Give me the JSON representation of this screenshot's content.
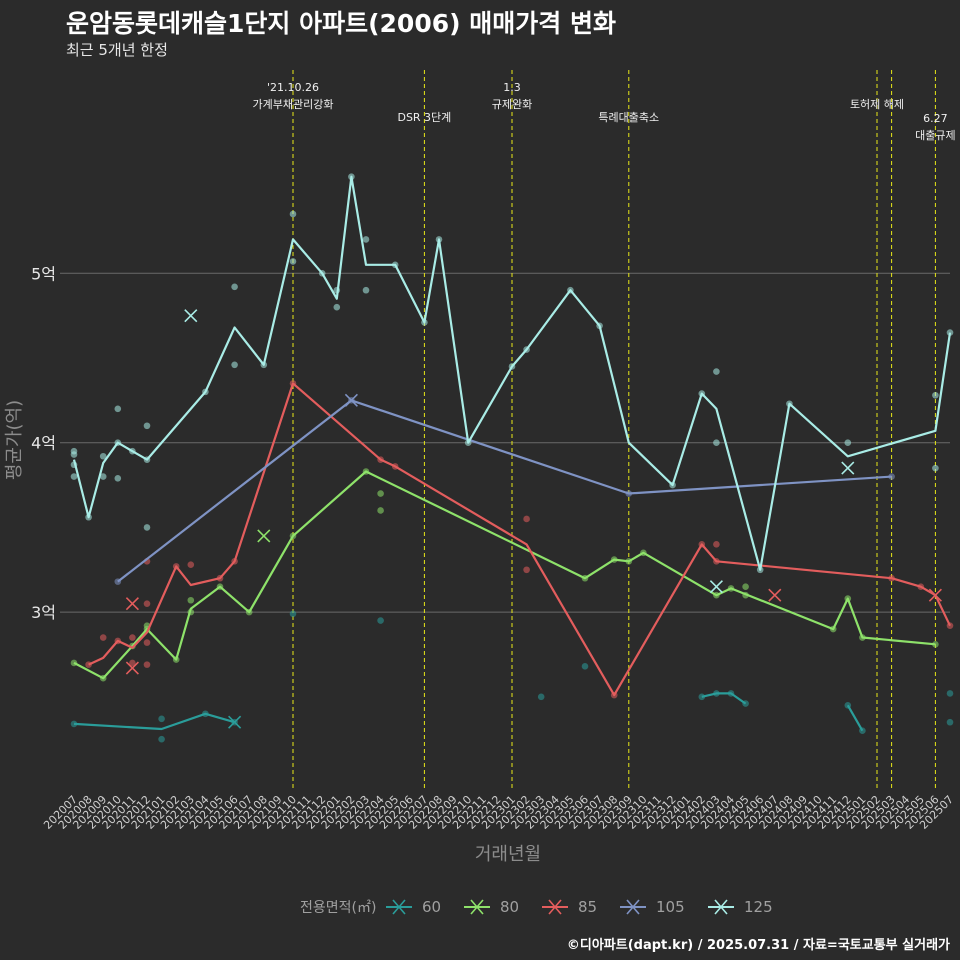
{
  "title": "운암동롯데캐슬1단지 아파트(2006) 매매가격 변화",
  "subtitle": "최근 5개년 한정",
  "caption": "©디아파트(dapt.kr) / 2025.07.31 / 자료=국토교통부 실거래가",
  "colors": {
    "60": "#2a9d9a",
    "80": "#8ee26a",
    "85": "#e35d5d",
    "105": "#7f93c4",
    "125": "#a9ece6",
    "event": "#e8e818"
  },
  "chart_data": {
    "type": "line",
    "xlabel": "거래년월",
    "ylabel": "평균가(억)",
    "x": [
      "202007",
      "202008",
      "202009",
      "202010",
      "202011",
      "202012",
      "202101",
      "202102",
      "202103",
      "202104",
      "202105",
      "202106",
      "202107",
      "202108",
      "202109",
      "202110",
      "202111",
      "202112",
      "202201",
      "202202",
      "202203",
      "202204",
      "202205",
      "202206",
      "202207",
      "202208",
      "202209",
      "202210",
      "202211",
      "202212",
      "202301",
      "202302",
      "202303",
      "202304",
      "202305",
      "202306",
      "202307",
      "202308",
      "202309",
      "202310",
      "202311",
      "202312",
      "202401",
      "202402",
      "202403",
      "202404",
      "202405",
      "202406",
      "202407",
      "202408",
      "202409",
      "202410",
      "202411",
      "202412",
      "202501",
      "202502",
      "202503",
      "202504",
      "202505",
      "202506",
      "202507"
    ],
    "y_ticks": [
      {
        "value": 3,
        "label": "3억"
      },
      {
        "value": 4,
        "label": "4억"
      },
      {
        "value": 5,
        "label": "5억"
      }
    ],
    "ylim": [
      1.95,
      6.2
    ],
    "legend_title": "전용면적(㎡)",
    "legend_position": "bottom",
    "events": [
      {
        "x": "202110",
        "label": "'21.10.26\n가계부채관리강화",
        "row": 1
      },
      {
        "x": "202207",
        "label": "DSR 3단계",
        "row": 2
      },
      {
        "x": "202301",
        "label": "1.3\n규제완화",
        "row": 1
      },
      {
        "x": "202309",
        "label": "특례대출축소",
        "row": 2
      },
      {
        "x": "202502",
        "label": "토허제 해제",
        "row": 1.5
      },
      {
        "x": "202503",
        "label": "",
        "row": 0
      },
      {
        "x": "202506",
        "label": "6.27\n대출규제",
        "row": 2.2
      }
    ],
    "series": [
      {
        "name": "60",
        "color": "#2a9d9a",
        "line": [
          [
            "202007",
            2.34
          ],
          [
            "202013",
            2.31
          ],
          [
            "202104",
            2.4
          ],
          [
            "202106",
            2.35
          ]
        ],
        "points": [
          [
            "202007",
            2.34
          ],
          [
            "202101",
            2.37
          ],
          [
            "202101",
            2.25
          ],
          [
            "202104",
            2.4
          ],
          [
            "202106",
            2.35
          ],
          [
            "202110",
            2.99
          ],
          [
            "202204",
            2.95
          ],
          [
            "202303",
            2.5
          ],
          [
            "202306",
            2.68
          ],
          [
            "202402",
            2.5
          ],
          [
            "202403",
            2.52
          ],
          [
            "202404",
            2.52
          ],
          [
            "202405",
            2.46
          ],
          [
            "202412",
            2.45
          ],
          [
            "202501",
            2.3
          ],
          [
            "202507",
            2.52
          ],
          [
            "202507",
            2.35
          ]
        ],
        "crosses": [
          [
            "202106",
            2.35
          ]
        ],
        "segments": [
          [
            [
              "202007",
              2.34
            ],
            [
              "202101",
              2.31
            ],
            [
              "202104",
              2.4
            ],
            [
              "202106",
              2.35
            ]
          ],
          [
            [
              "202402",
              2.5
            ],
            [
              "202403",
              2.52
            ],
            [
              "202404",
              2.52
            ],
            [
              "202405",
              2.46
            ]
          ],
          [
            [
              "202412",
              2.45
            ],
            [
              "202501",
              2.3
            ]
          ]
        ]
      },
      {
        "name": "80",
        "color": "#8ee26a",
        "segments": [
          [
            [
              "202007",
              2.7
            ],
            [
              "202009",
              2.61
            ],
            [
              "202011",
              2.8
            ],
            [
              "202012",
              2.9
            ],
            [
              "202102",
              2.72
            ],
            [
              "202103",
              3.02
            ],
            [
              "202105",
              3.15
            ],
            [
              "202107",
              3.0
            ],
            [
              "202110",
              3.45
            ],
            [
              "202203",
              3.83
            ],
            [
              "202306",
              3.2
            ],
            [
              "202308",
              3.31
            ],
            [
              "202309",
              3.3
            ],
            [
              "202310",
              3.35
            ],
            [
              "202403",
              3.1
            ],
            [
              "202404",
              3.14
            ],
            [
              "202411",
              2.9
            ],
            [
              "202412",
              3.08
            ],
            [
              "202501",
              2.85
            ],
            [
              "202506",
              2.81
            ]
          ]
        ],
        "points": [
          [
            "202007",
            2.7
          ],
          [
            "202009",
            2.61
          ],
          [
            "202011",
            2.8
          ],
          [
            "202012",
            2.9
          ],
          [
            "202012",
            2.92
          ],
          [
            "202102",
            2.72
          ],
          [
            "202103",
            3.0
          ],
          [
            "202103",
            3.07
          ],
          [
            "202105",
            3.15
          ],
          [
            "202107",
            3.0
          ],
          [
            "202110",
            3.45
          ],
          [
            "202203",
            3.83
          ],
          [
            "202204",
            3.7
          ],
          [
            "202204",
            3.6
          ],
          [
            "202306",
            3.2
          ],
          [
            "202308",
            3.31
          ],
          [
            "202309",
            3.3
          ],
          [
            "202310",
            3.35
          ],
          [
            "202403",
            3.1
          ],
          [
            "202404",
            3.14
          ],
          [
            "202405",
            3.15
          ],
          [
            "202405",
            3.1
          ],
          [
            "202411",
            2.9
          ],
          [
            "202412",
            3.08
          ],
          [
            "202501",
            2.85
          ],
          [
            "202506",
            2.81
          ]
        ],
        "crosses": [
          [
            "202108",
            3.45
          ]
        ]
      },
      {
        "name": "85",
        "color": "#e35d5d",
        "segments": [
          [
            [
              "202008",
              2.69
            ],
            [
              "202009",
              2.73
            ],
            [
              "202010",
              2.83
            ],
            [
              "202011",
              2.79
            ],
            [
              "202012",
              2.88
            ],
            [
              "202102",
              3.27
            ],
            [
              "202103",
              3.16
            ],
            [
              "202105",
              3.2
            ],
            [
              "202106",
              3.3
            ],
            [
              "202110",
              4.35
            ],
            [
              "202204",
              3.9
            ],
            [
              "202205",
              3.86
            ],
            [
              "202302",
              3.4
            ],
            [
              "202308",
              2.51
            ],
            [
              "202402",
              3.4
            ],
            [
              "202403",
              3.3
            ],
            [
              "202503",
              3.2
            ],
            [
              "202505",
              3.15
            ],
            [
              "202506",
              3.1
            ],
            [
              "202507",
              2.92
            ]
          ]
        ],
        "points": [
          [
            "202008",
            2.69
          ],
          [
            "202009",
            2.85
          ],
          [
            "202010",
            2.83
          ],
          [
            "202011",
            2.85
          ],
          [
            "202011",
            2.7
          ],
          [
            "202012",
            2.82
          ],
          [
            "202012",
            2.69
          ],
          [
            "202012",
            3.05
          ],
          [
            "202012",
            3.3
          ],
          [
            "202102",
            3.27
          ],
          [
            "202103",
            3.28
          ],
          [
            "202105",
            3.2
          ],
          [
            "202106",
            3.3
          ],
          [
            "202110",
            4.35
          ],
          [
            "202204",
            3.9
          ],
          [
            "202205",
            3.86
          ],
          [
            "202302",
            3.55
          ],
          [
            "202302",
            3.25
          ],
          [
            "202308",
            2.51
          ],
          [
            "202402",
            3.4
          ],
          [
            "202403",
            3.4
          ],
          [
            "202403",
            3.3
          ],
          [
            "202503",
            3.2
          ],
          [
            "202505",
            3.15
          ],
          [
            "202507",
            2.92
          ]
        ],
        "crosses": [
          [
            "202011",
            3.05
          ],
          [
            "202011",
            2.67
          ],
          [
            "202407",
            3.1
          ],
          [
            "202506",
            3.1
          ]
        ]
      },
      {
        "name": "105",
        "color": "#7f93c4",
        "segments": [
          [
            [
              "202010",
              3.18
            ],
            [
              "202202",
              4.25
            ],
            [
              "202309",
              3.7
            ],
            [
              "202503",
              3.8
            ]
          ]
        ],
        "points": [
          [
            "202010",
            3.18
          ],
          [
            "202202",
            4.25
          ],
          [
            "202309",
            3.7
          ],
          [
            "202503",
            3.8
          ]
        ],
        "crosses": [
          [
            "202202",
            4.25
          ]
        ]
      },
      {
        "name": "125",
        "color": "#a9ece6",
        "segments": [
          [
            [
              "202007",
              3.9
            ],
            [
              "202008",
              3.56
            ],
            [
              "202009",
              3.88
            ],
            [
              "202010",
              4.0
            ],
            [
              "202011",
              3.95
            ],
            [
              "202012",
              3.9
            ],
            [
              "202104",
              4.3
            ],
            [
              "202106",
              4.68
            ],
            [
              "202108",
              4.46
            ],
            [
              "202110",
              5.2
            ],
            [
              "202112",
              5.0
            ],
            [
              "202201",
              4.85
            ],
            [
              "202202",
              5.57
            ],
            [
              "202203",
              5.05
            ],
            [
              "202205",
              5.05
            ],
            [
              "202207",
              4.71
            ],
            [
              "202208",
              5.2
            ],
            [
              "202210",
              4.0
            ],
            [
              "202301",
              4.45
            ],
            [
              "202302",
              4.55
            ],
            [
              "202305",
              4.9
            ],
            [
              "202307",
              4.69
            ],
            [
              "202309",
              4.0
            ],
            [
              "202312",
              3.75
            ],
            [
              "202402",
              4.29
            ],
            [
              "202403",
              4.2
            ],
            [
              "202406",
              3.25
            ],
            [
              "202408",
              4.23
            ],
            [
              "202412",
              3.92
            ],
            [
              "202506",
              4.07
            ],
            [
              "202507",
              4.65
            ]
          ]
        ],
        "points": [
          [
            "202007",
            3.95
          ],
          [
            "202007",
            3.93
          ],
          [
            "202007",
            3.87
          ],
          [
            "202007",
            3.8
          ],
          [
            "202008",
            3.56
          ],
          [
            "202009",
            3.92
          ],
          [
            "202009",
            3.8
          ],
          [
            "202010",
            4.2
          ],
          [
            "202010",
            4.0
          ],
          [
            "202010",
            3.79
          ],
          [
            "202011",
            3.95
          ],
          [
            "202012",
            4.1
          ],
          [
            "202012",
            3.9
          ],
          [
            "202012",
            3.5
          ],
          [
            "202104",
            4.3
          ],
          [
            "202106",
            4.92
          ],
          [
            "202106",
            4.46
          ],
          [
            "202108",
            4.46
          ],
          [
            "202110",
            5.35
          ],
          [
            "202110",
            5.07
          ],
          [
            "202112",
            5.0
          ],
          [
            "202201",
            4.9
          ],
          [
            "202201",
            4.8
          ],
          [
            "202202",
            5.57
          ],
          [
            "202203",
            5.2
          ],
          [
            "202203",
            4.9
          ],
          [
            "202205",
            5.05
          ],
          [
            "202207",
            4.71
          ],
          [
            "202208",
            5.2
          ],
          [
            "202210",
            4.0
          ],
          [
            "202301",
            4.45
          ],
          [
            "202302",
            4.55
          ],
          [
            "202305",
            4.9
          ],
          [
            "202307",
            4.69
          ],
          [
            "202312",
            3.75
          ],
          [
            "202402",
            4.29
          ],
          [
            "202403",
            4.42
          ],
          [
            "202403",
            4.0
          ],
          [
            "202406",
            3.25
          ],
          [
            "202408",
            4.23
          ],
          [
            "202412",
            4.0
          ],
          [
            "202506",
            4.28
          ],
          [
            "202506",
            3.85
          ],
          [
            "202507",
            4.65
          ]
        ],
        "crosses": [
          [
            "202103",
            4.75
          ],
          [
            "202403",
            3.15
          ],
          [
            "202412",
            3.85
          ]
        ]
      }
    ]
  }
}
